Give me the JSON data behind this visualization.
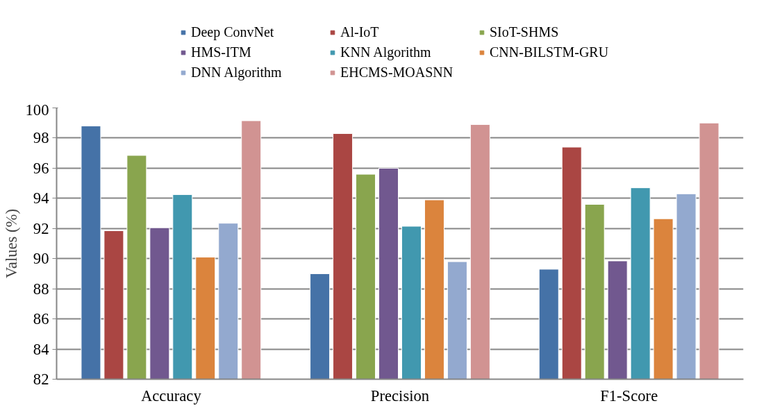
{
  "chart_data": {
    "type": "bar",
    "ylabel": "Values (%)",
    "categories": [
      "Accuracy",
      "Precision",
      "F1-Score"
    ],
    "series": [
      {
        "name": "Deep ConvNet",
        "color": "#4572a7",
        "values": [
          98.8,
          89.0,
          89.3
        ]
      },
      {
        "name": "Al-IoT",
        "color": "#aa4643",
        "values": [
          91.85,
          98.3,
          97.4
        ]
      },
      {
        "name": "SIoT-SHMS",
        "color": "#89a54e",
        "values": [
          96.85,
          95.6,
          93.6
        ]
      },
      {
        "name": "HMS-ITM",
        "color": "#71588f",
        "values": [
          92.05,
          96.0,
          89.85
        ]
      },
      {
        "name": "KNN Algorithm",
        "color": "#4198af",
        "values": [
          94.25,
          92.15,
          94.7
        ]
      },
      {
        "name": "CNN-BILSTM-GRU",
        "color": "#db843d",
        "values": [
          90.1,
          93.9,
          92.65
        ]
      },
      {
        "name": "DNN Algorithm",
        "color": "#93a9cf",
        "values": [
          92.35,
          89.8,
          94.3
        ]
      },
      {
        "name": "EHCMS-MOASNN",
        "color": "#d19392",
        "values": [
          99.15,
          98.9,
          99.0
        ]
      }
    ],
    "ylim": [
      82,
      100
    ],
    "yticks": [
      82,
      84,
      86,
      88,
      90,
      92,
      94,
      96,
      98,
      100
    ],
    "grid": "y",
    "legend": "top"
  }
}
